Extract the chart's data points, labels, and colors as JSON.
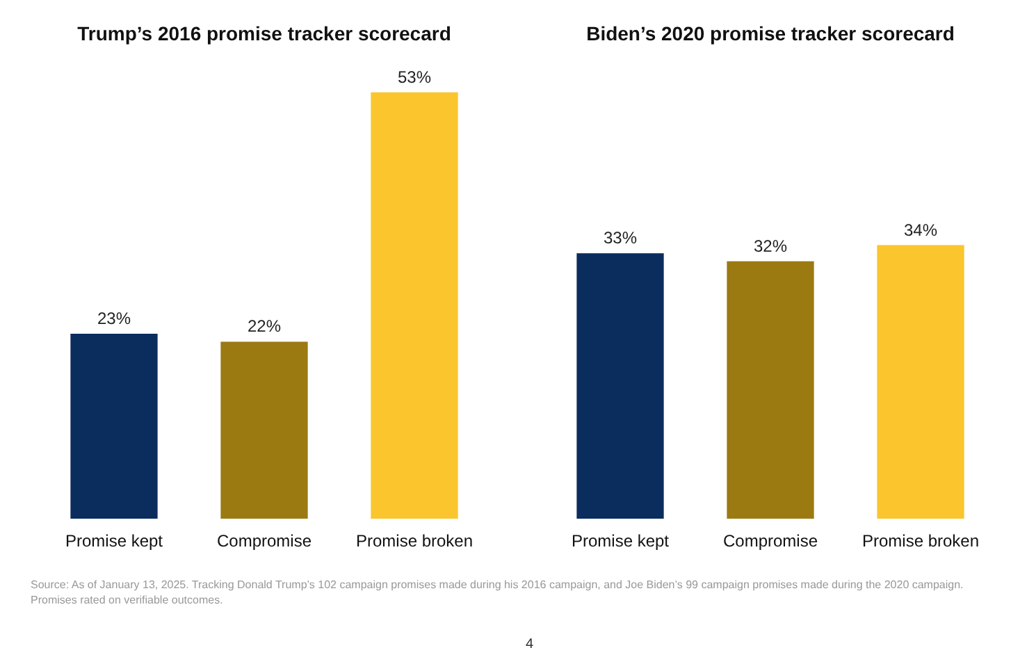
{
  "chart_data": [
    {
      "type": "bar",
      "title": "Trump’s 2016 promise tracker scorecard",
      "categories": [
        "Promise kept",
        "Compromise",
        "Promise broken"
      ],
      "values": [
        23,
        22,
        53
      ],
      "colors": [
        "#0b2d5e",
        "#9c7a12",
        "#fbc52e"
      ],
      "data_labels": true,
      "value_labels": [
        "23%",
        "22%",
        "53%"
      ],
      "annotations": [
        "Source: As of January 13, 2025. Tracking Donald Trump’s 102 campaign promises made during his 2016 campaign, and Joe Biden’s 99 campaign promises made during the 2020 campaign. Promises rated on verifiable outcomes."
      ]
    },
    {
      "type": "bar",
      "title": "Biden’s 2020 promise tracker scorecard",
      "categories": [
        "Promise kept",
        "Compromise",
        "Promise broken"
      ],
      "values": [
        33,
        32,
        34
      ],
      "colors": [
        "#0b2d5e",
        "#9c7a12",
        "#fbc52e"
      ],
      "data_labels": true,
      "value_labels": [
        "33%",
        "32%",
        "34%"
      ],
      "annotations": [
        "4"
      ]
    }
  ]
}
